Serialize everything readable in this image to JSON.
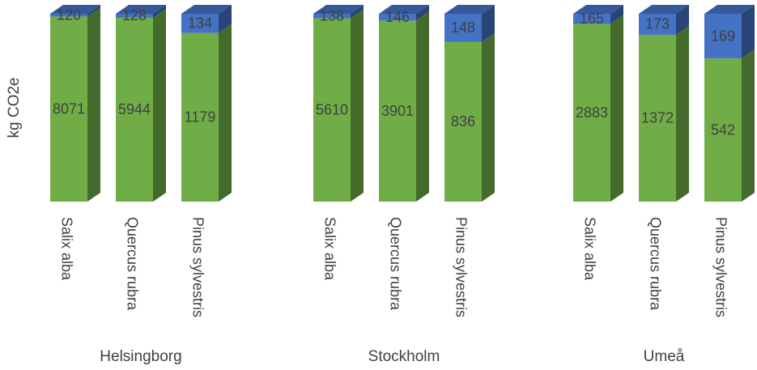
{
  "chart_data": {
    "type": "bar",
    "stacked": true,
    "style": "3d-column",
    "ylabel": "kg CO2e",
    "groups": [
      {
        "name": "Helsingborg",
        "categories": [
          "Salix alba",
          "Quercus rubra",
          "Pinus sylvestris"
        ],
        "bottom": [
          8071,
          5944,
          1179
        ],
        "top": [
          120,
          128,
          134
        ]
      },
      {
        "name": "Stockholm",
        "categories": [
          "Salix alba",
          "Quercus rubra",
          "Pinus sylvestris"
        ],
        "bottom": [
          5610,
          3901,
          836
        ],
        "top": [
          138,
          146,
          148
        ]
      },
      {
        "name": "Umeå",
        "categories": [
          "Salix alba",
          "Quercus rubra",
          "Pinus sylvestris"
        ],
        "bottom": [
          2883,
          1372,
          542
        ],
        "top": [
          165,
          173,
          169
        ]
      }
    ],
    "bottom_color": "#70AD47",
    "top_color": "#4472C4",
    "scale": "percent-stacked"
  }
}
